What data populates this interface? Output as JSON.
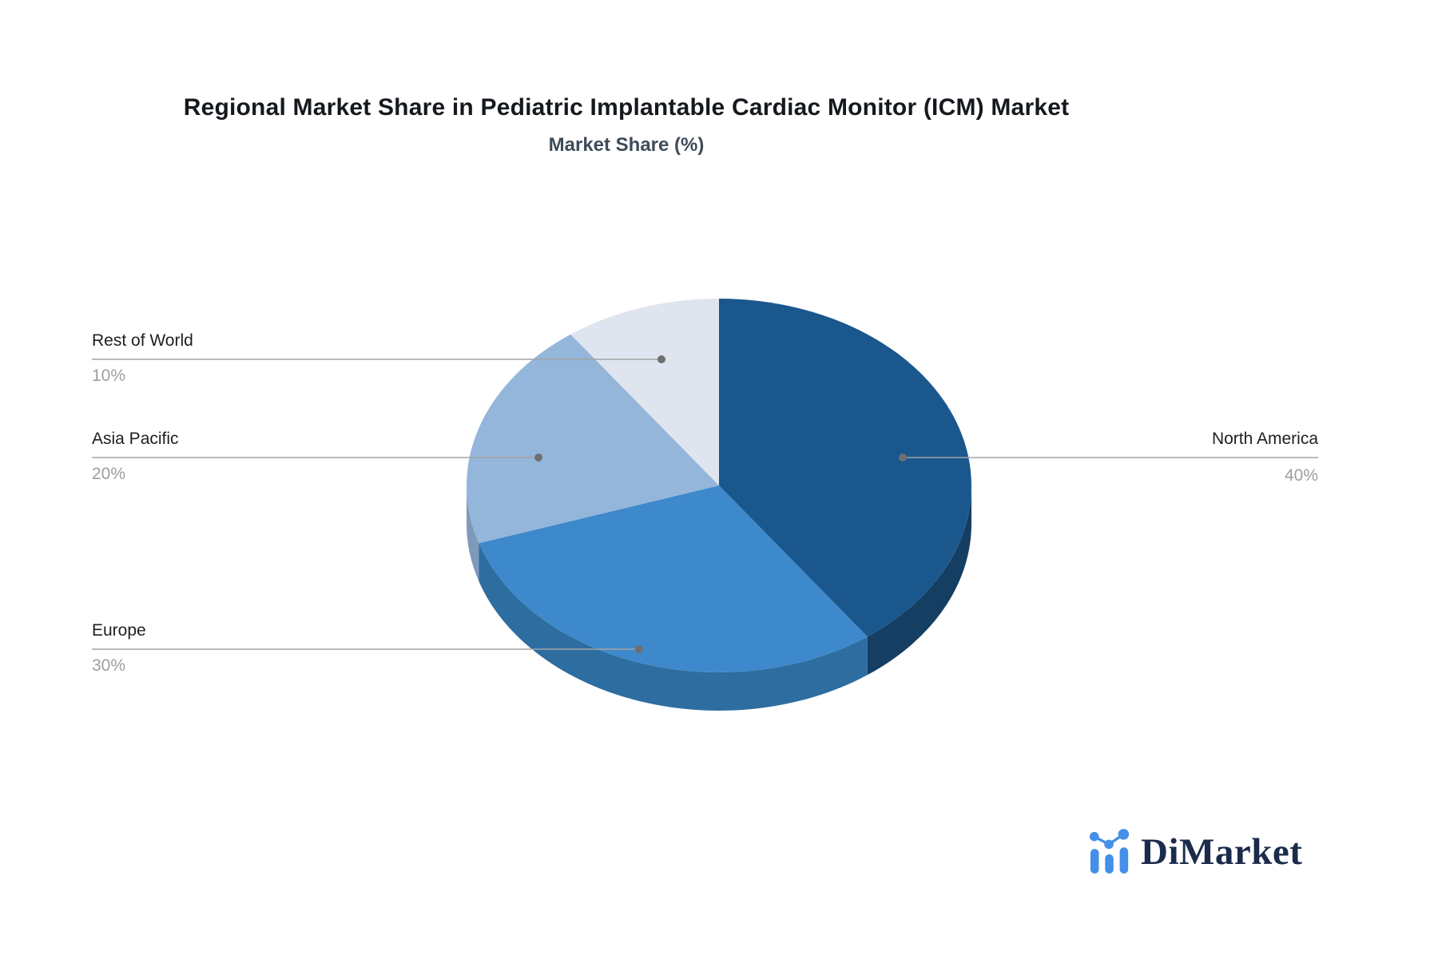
{
  "header": {
    "title": "Regional Market Share in Pediatric Implantable Cardiac Monitor (ICM) Market",
    "subtitle": "Market Share (%)"
  },
  "chart_data": {
    "type": "pie",
    "style": "3d",
    "title": "Regional Market Share in Pediatric Implantable Cardiac Monitor (ICM) Market",
    "subtitle": "Market Share (%)",
    "unit": "%",
    "start_angle_deg": 0,
    "direction": "clockwise",
    "legend_position": "connector-labels",
    "slices": [
      {
        "label": "North America",
        "value": 40,
        "pct_label": "40%",
        "color": "#1A578D",
        "side_color": "#143E62"
      },
      {
        "label": "Europe",
        "value": 30,
        "pct_label": "30%",
        "color": "#3D89CB",
        "side_color": "#2E6DA0"
      },
      {
        "label": "Asia Pacific",
        "value": 20,
        "pct_label": "20%",
        "color": "#94B6DA",
        "side_color": "#7E99BA"
      },
      {
        "label": "Rest of World",
        "value": 10,
        "pct_label": "10%",
        "color": "#DFE5EF",
        "side_color": "#C3CCDA"
      }
    ],
    "connector_color": "#A3A3A3",
    "connector_dot_color": "#6F6F6F"
  },
  "branding": {
    "logo_text": "DiMarket",
    "logo_icon": "bar-chart-trend-icon",
    "logo_icon_color": "#4490E8",
    "logo_text_color": "#1B2B4B"
  }
}
